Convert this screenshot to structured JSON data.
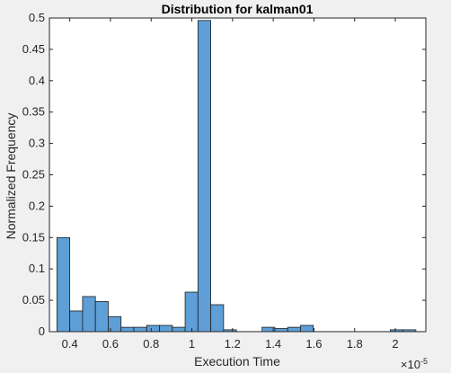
{
  "chart_data": {
    "type": "histogram",
    "title": "Distribution for kalman01",
    "xlabel": "Execution Time",
    "ylabel": "Normalized Frequency",
    "x_exponent_label": "×10",
    "x_exponent_power": "-5",
    "x_scale": 1e-05,
    "xlim": [
      0.3,
      2.15
    ],
    "ylim": [
      0,
      0.5
    ],
    "grid": false,
    "bar_color": "#5d9fd6",
    "bar_edge_color": "#1f1f1f",
    "x_ticks": [
      {
        "value": 0.4,
        "label": "0.4"
      },
      {
        "value": 0.6,
        "label": "0.6"
      },
      {
        "value": 0.8,
        "label": "0.8"
      },
      {
        "value": 1.0,
        "label": "1"
      },
      {
        "value": 1.2,
        "label": "1.2"
      },
      {
        "value": 1.4,
        "label": "1.4"
      },
      {
        "value": 1.6,
        "label": "1.6"
      },
      {
        "value": 1.8,
        "label": "1.8"
      },
      {
        "value": 2.0,
        "label": "2"
      }
    ],
    "y_ticks": [
      {
        "value": 0,
        "label": "0"
      },
      {
        "value": 0.05,
        "label": "0.05"
      },
      {
        "value": 0.1,
        "label": "0.1"
      },
      {
        "value": 0.15,
        "label": "0.15"
      },
      {
        "value": 0.2,
        "label": "0.2"
      },
      {
        "value": 0.25,
        "label": "0.25"
      },
      {
        "value": 0.3,
        "label": "0.3"
      },
      {
        "value": 0.35,
        "label": "0.35"
      },
      {
        "value": 0.4,
        "label": "0.4"
      },
      {
        "value": 0.45,
        "label": "0.45"
      },
      {
        "value": 0.5,
        "label": "0.5"
      }
    ],
    "bin_width": 0.063,
    "bin_starts": [
      0.337,
      0.4,
      0.463,
      0.526,
      0.589,
      0.652,
      0.715,
      0.778,
      0.841,
      0.904,
      0.967,
      1.03,
      1.093,
      1.156,
      1.219,
      1.282,
      1.345,
      1.408,
      1.471,
      1.534,
      1.597,
      1.66,
      1.723,
      1.786,
      1.849,
      1.912,
      1.975,
      2.038
    ],
    "values": [
      0.15,
      0.033,
      0.056,
      0.048,
      0.024,
      0.007,
      0.007,
      0.01,
      0.01,
      0.007,
      0.063,
      0.496,
      0.043,
      0.003,
      0.0,
      0.0,
      0.007,
      0.005,
      0.007,
      0.01,
      0.0,
      0.0,
      0.0,
      0.0,
      0.0,
      0.0,
      0.003,
      0.003
    ]
  }
}
